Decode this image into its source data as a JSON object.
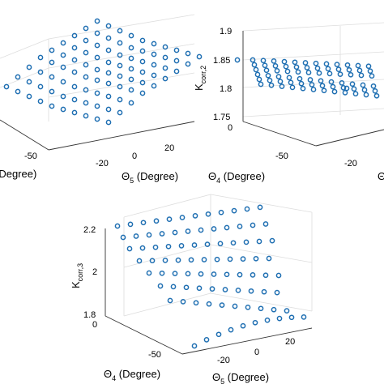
{
  "marker_color": "#1f6fb2",
  "chart_data": [
    {
      "type": "scatter",
      "panel": "top-left",
      "labels": {
        "x_label_visible": "(Degree)",
        "y_label_main": "Θ",
        "y_label_sub": "5",
        "y_label_unit": " (Degree)"
      },
      "ticks": {
        "x": [
          {
            "label": "-50"
          }
        ],
        "y": [
          {
            "label": "-20"
          },
          {
            "label": "0"
          },
          {
            "label": "20"
          }
        ]
      },
      "points": [
        {
          "x": 0,
          "y": 0.85,
          "z": 0.22
        }
      ]
    },
    {
      "type": "scatter",
      "panel": "top-right",
      "labels": {
        "z_label_main": "K",
        "z_label_sub": "corr,2",
        "x_label_main": "Θ",
        "x_label_sub": "4",
        "x_label_unit": " (Degree)",
        "y_partial": "Θ"
      },
      "ticks": {
        "z": [
          {
            "label": "1.9"
          },
          {
            "label": "1.85"
          },
          {
            "label": "1.8"
          },
          {
            "label": "1.75"
          }
        ],
        "x": [
          {
            "label": "0"
          },
          {
            "label": "-50"
          }
        ],
        "y": [
          {
            "label": "-20"
          }
        ]
      },
      "zlim": [
        1.75,
        1.9
      ],
      "points": [
        {
          "value": 1.85
        }
      ]
    },
    {
      "type": "scatter",
      "panel": "bottom",
      "labels": {
        "z_label_main": "K",
        "z_label_sub": "corr,3",
        "x_label_main": "Θ",
        "x_label_sub": "4",
        "x_label_unit": " (Degree)",
        "y_label_main": "Θ",
        "y_label_sub": "5",
        "y_label_unit": " (Degree)"
      },
      "ticks": {
        "z": [
          {
            "label": "2.2"
          },
          {
            "label": "2"
          },
          {
            "label": "1.8"
          }
        ],
        "x": [
          {
            "label": "0"
          },
          {
            "label": "-50"
          }
        ],
        "y": [
          {
            "label": "-20"
          },
          {
            "label": "0"
          },
          {
            "label": "20"
          }
        ]
      },
      "zlim": [
        1.8,
        2.2
      ],
      "points": [
        {
          "value": 2.2
        }
      ]
    }
  ]
}
